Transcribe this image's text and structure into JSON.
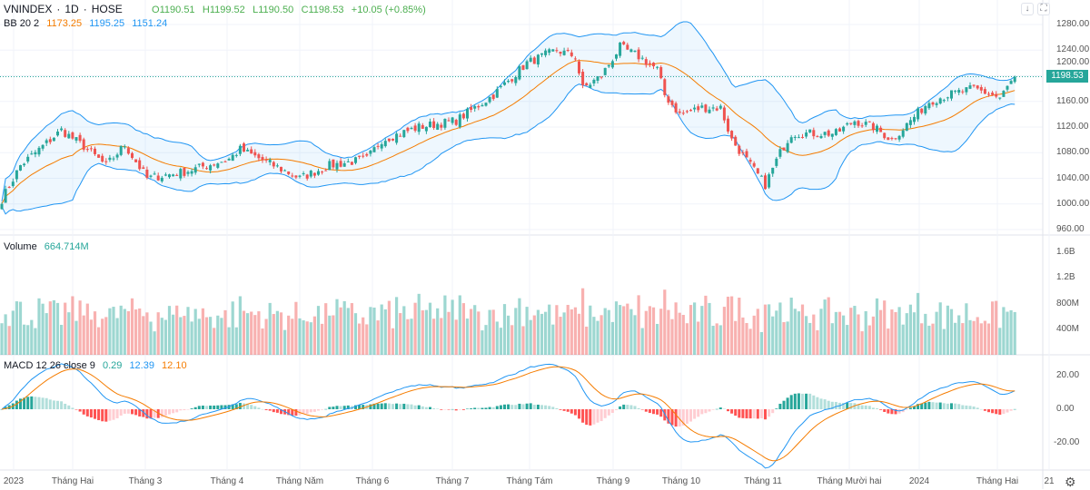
{
  "header": {
    "symbol": "VNINDEX",
    "interval": "1D",
    "exchange": "HOSE",
    "open": "O1190.51",
    "high": "H1199.52",
    "low": "L1190.50",
    "close": "C1198.53",
    "change": "+10.05 (+0.85%)"
  },
  "bb": {
    "label": "BB 20 2",
    "basis": "1173.25",
    "upper": "1195.25",
    "lower": "1151.24"
  },
  "volume": {
    "label": "Volume",
    "value": "664.714M"
  },
  "macd": {
    "label": "MACD 12 26 close 9",
    "hist": "0.29",
    "macd": "12.39",
    "signal": "12.10"
  },
  "price_axis": [
    "1280.00",
    "1240.00",
    "1200.00",
    "1160.00",
    "1120.00",
    "1080.00",
    "1040.00",
    "1000.00",
    "960.00"
  ],
  "last_price": "1198.53",
  "volume_axis": [
    "1.6B",
    "1.2B",
    "800M",
    "400M"
  ],
  "macd_axis": [
    "20.00",
    "0.00",
    "-20.00"
  ],
  "time_axis": [
    "2023",
    "Tháng Hai",
    "Tháng 3",
    "Tháng 4",
    "Tháng Năm",
    "Tháng 6",
    "Tháng 7",
    "Tháng Tám",
    "Tháng 9",
    "Tháng 10",
    "Tháng 11",
    "Tháng Mười hai",
    "2024",
    "Tháng Hai",
    "21"
  ],
  "colors": {
    "up": "#26a69a",
    "down": "#ef5350",
    "bb_basis": "#f57c00",
    "bb_band": "#2196f3"
  },
  "chart_data": {
    "type": "candlestick",
    "title": "VNINDEX 1D HOSE",
    "ylim": [
      960,
      1280
    ],
    "approx_close_keypoints": [
      [
        0,
        1007
      ],
      [
        5,
        1060
      ],
      [
        16,
        1115
      ],
      [
        22,
        1090
      ],
      [
        28,
        1060
      ],
      [
        33,
        1092
      ],
      [
        39,
        1040
      ],
      [
        49,
        1050
      ],
      [
        61,
        1070
      ],
      [
        64,
        1085
      ],
      [
        73,
        1060
      ],
      [
        80,
        1040
      ],
      [
        88,
        1060
      ],
      [
        98,
        1070
      ],
      [
        102,
        1100
      ],
      [
        112,
        1120
      ],
      [
        122,
        1130
      ],
      [
        132,
        1170
      ],
      [
        141,
        1220
      ],
      [
        149,
        1240
      ],
      [
        154,
        1230
      ],
      [
        156,
        1180
      ],
      [
        161,
        1200
      ],
      [
        166,
        1245
      ],
      [
        171,
        1230
      ],
      [
        176,
        1210
      ],
      [
        178,
        1170
      ],
      [
        182,
        1140
      ],
      [
        188,
        1150
      ],
      [
        193,
        1150
      ],
      [
        196,
        1100
      ],
      [
        201,
        1060
      ],
      [
        205,
        1030
      ],
      [
        209,
        1080
      ],
      [
        212,
        1110
      ],
      [
        217,
        1110
      ],
      [
        224,
        1110
      ],
      [
        229,
        1130
      ],
      [
        234,
        1120
      ],
      [
        239,
        1100
      ],
      [
        244,
        1130
      ],
      [
        249,
        1160
      ],
      [
        254,
        1170
      ],
      [
        261,
        1180
      ],
      [
        266,
        1170
      ],
      [
        268,
        1165
      ],
      [
        272,
        1198.53
      ]
    ]
  }
}
